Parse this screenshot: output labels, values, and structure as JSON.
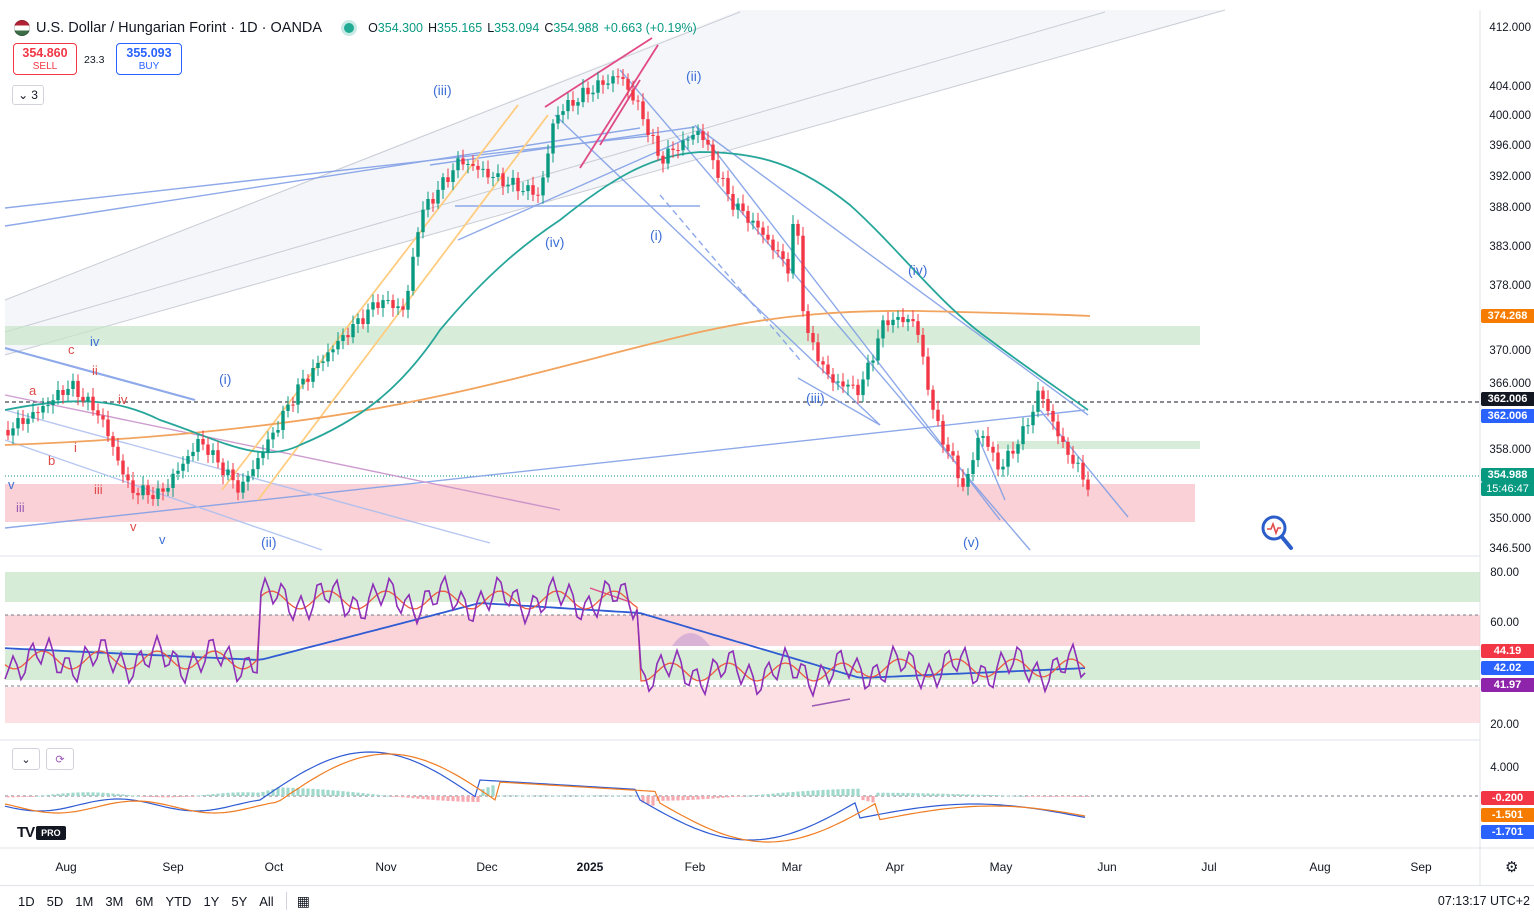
{
  "header": {
    "title": "U.S. Dollar / Hungarian Forint · 1D · OANDA",
    "ohlc": {
      "o_label": "O",
      "o": "354.300",
      "h_label": "H",
      "h": "355.165",
      "l_label": "L",
      "l": "353.094",
      "c_label": "C",
      "c": "354.988",
      "change": "+0.663 (+0.19%)"
    }
  },
  "trade": {
    "sell_price": "354.860",
    "sell_label": "SELL",
    "spread": "23.3",
    "buy_price": "355.093",
    "buy_label": "BUY"
  },
  "collapse_label": "3",
  "price_axis": {
    "ticks": [
      "412.000",
      "404.000",
      "400.000",
      "396.000",
      "392.000",
      "388.000",
      "383.000",
      "378.000",
      "370.000",
      "366.000",
      "358.000",
      "350.000",
      "346.500"
    ],
    "tags": {
      "ma_long": "374.268",
      "dashed_level": "362.006",
      "ma_short": "362.006",
      "last_price": "354.988",
      "countdown": "15:46:47"
    },
    "colors": {
      "up": "#089981",
      "down": "#f23645",
      "ma_long": "#ffa94d",
      "ma_short": "#26a69a"
    }
  },
  "rsi_axis": {
    "ticks": [
      "80.00",
      "60.00",
      "20.00"
    ],
    "tags": {
      "rsi_ma": "44.19",
      "bb_basis": "42.02",
      "rsi": "41.97"
    }
  },
  "macd_axis": {
    "ticks": [
      "4.000"
    ],
    "tags": {
      "hist": "-0.200",
      "signal": "-1.501",
      "macd": "-1.701"
    }
  },
  "time_axis": {
    "labels": [
      "Aug",
      "Sep",
      "Oct",
      "Nov",
      "Dec",
      "2025",
      "Feb",
      "Mar",
      "Apr",
      "May",
      "Jun",
      "Jul",
      "Aug",
      "Sep"
    ]
  },
  "wave_labels": {
    "blue": [
      "(iii)",
      "(ii)",
      "(iv)",
      "(i)",
      "(iv)",
      "(iii)",
      "(i)",
      "(ii)",
      "(v)",
      "iv"
    ],
    "red_left": [
      "c",
      "a",
      "ii",
      "iv",
      "i",
      "b",
      "iii",
      "v",
      "iii"
    ],
    "blue_left": [
      "v",
      "v"
    ]
  },
  "bottom_bar": {
    "ranges": [
      "1D",
      "5D",
      "1M",
      "3M",
      "6M",
      "YTD",
      "1Y",
      "5Y",
      "All"
    ],
    "clock": "07:13:17 UTC+2"
  },
  "logo": {
    "pro_label": "PRO"
  }
}
